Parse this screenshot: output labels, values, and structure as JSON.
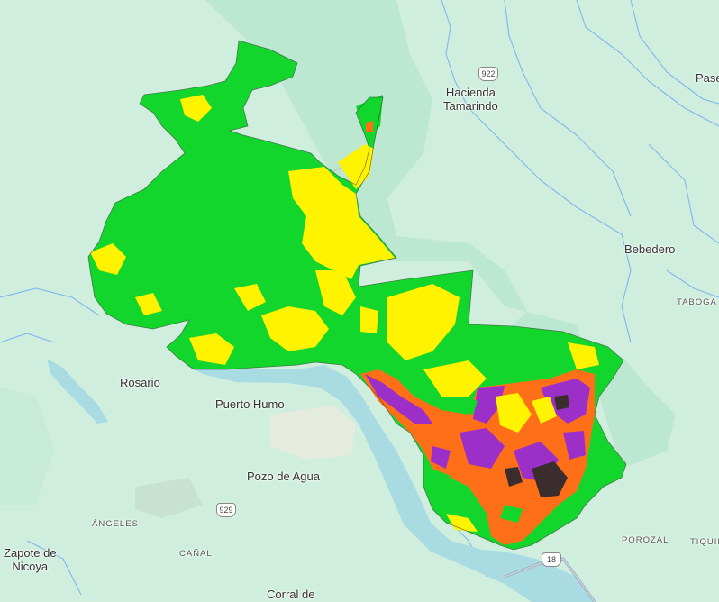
{
  "places": {
    "hacienda": "Hacienda\nTamarindo",
    "bebedero": "Bebedero",
    "taboga": "TABOGA",
    "rosario": "Rosario",
    "puerto_humo": "Puerto Humo",
    "pozo_de_agua": "Pozo de Agua",
    "angeles": "ÁNGELES",
    "canal": "CAÑAL",
    "zapote": "Zapote de\nNicoya",
    "corral": "Corral de",
    "porozal": "POROZAL",
    "tiquir": "TIQUIR",
    "pase": "Pase"
  },
  "routes": {
    "r922": "922",
    "r929": "929",
    "r18": "18"
  },
  "colors": {
    "background": "#cfeedd",
    "river": "#a9dbe3",
    "protected_area": "#b9e5cf",
    "class_green": "#12d62c",
    "class_yellow": "#fff300",
    "class_orange": "#ff6f17",
    "class_purple": "#9b2fc8",
    "class_dark": "#3b2d2d"
  }
}
